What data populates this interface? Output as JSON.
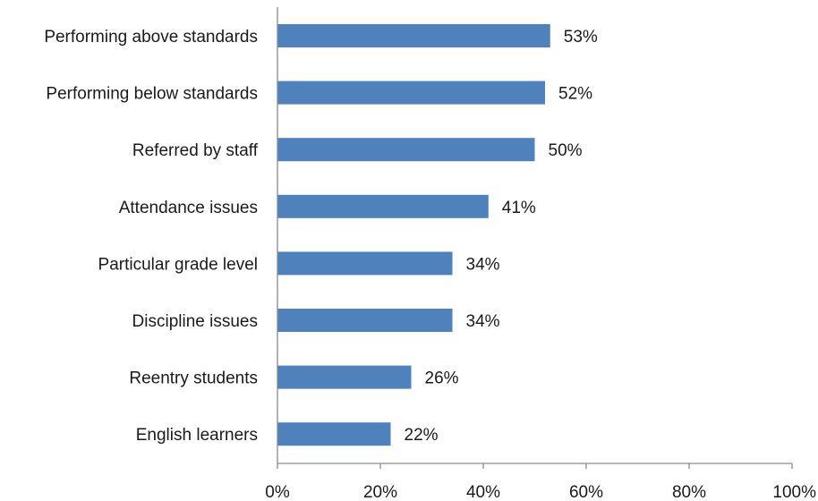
{
  "chart_data": {
    "type": "bar",
    "orientation": "horizontal",
    "categories": [
      "Performing above standards",
      "Performing below standards",
      "Referred by staff",
      "Attendance issues",
      "Particular grade level",
      "Discipline issues",
      "Reentry students",
      "English learners"
    ],
    "values": [
      53,
      52,
      50,
      41,
      34,
      34,
      26,
      22
    ],
    "value_labels": [
      "53%",
      "52%",
      "50%",
      "41%",
      "34%",
      "34%",
      "26%",
      "22%"
    ],
    "xlim": [
      0,
      100
    ],
    "x_ticks": [
      0,
      20,
      40,
      60,
      80,
      100
    ],
    "x_tick_labels": [
      "0%",
      "20%",
      "40%",
      "60%",
      "80%",
      "100%"
    ],
    "title": "",
    "xlabel": "",
    "ylabel": "",
    "grid": false,
    "legend": "none",
    "bar_color": "#4f81bd"
  }
}
